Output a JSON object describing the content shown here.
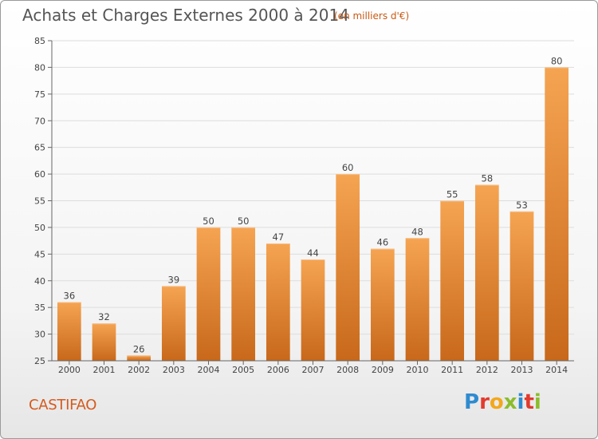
{
  "header": {
    "title": "Achats et Charges Externes 2000 à 2014",
    "unit": "(en milliers d'€)"
  },
  "footer": {
    "commune": "CASTIFAO",
    "logo": "Proxiti",
    "logo_letters": [
      {
        "char": "P",
        "color": "#2e8bd0"
      },
      {
        "char": "r",
        "color": "#e23a2e"
      },
      {
        "char": "o",
        "color": "#f2a81d"
      },
      {
        "char": "x",
        "color": "#8bbd2c"
      },
      {
        "char": "i",
        "color": "#2e8bd0"
      },
      {
        "char": "t",
        "color": "#e23a2e"
      },
      {
        "char": "i",
        "color": "#8bbd2c"
      }
    ]
  },
  "chart_data": {
    "type": "bar",
    "title": "Achats et Charges Externes 2000 à 2014",
    "subtitle": "(en milliers d'€)",
    "categories": [
      "2000",
      "2001",
      "2002",
      "2003",
      "2004",
      "2005",
      "2006",
      "2007",
      "2008",
      "2009",
      "2010",
      "2011",
      "2012",
      "2013",
      "2014"
    ],
    "values": [
      36,
      32,
      26,
      39,
      50,
      50,
      47,
      44,
      60,
      46,
      48,
      55,
      58,
      53,
      80
    ],
    "ylim": [
      25,
      85
    ],
    "yticks": [
      25,
      30,
      35,
      40,
      45,
      50,
      55,
      60,
      65,
      70,
      75,
      80,
      85
    ],
    "grid": true,
    "bar_color_top": "#f5a452",
    "bar_color_bottom": "#c8681a"
  }
}
